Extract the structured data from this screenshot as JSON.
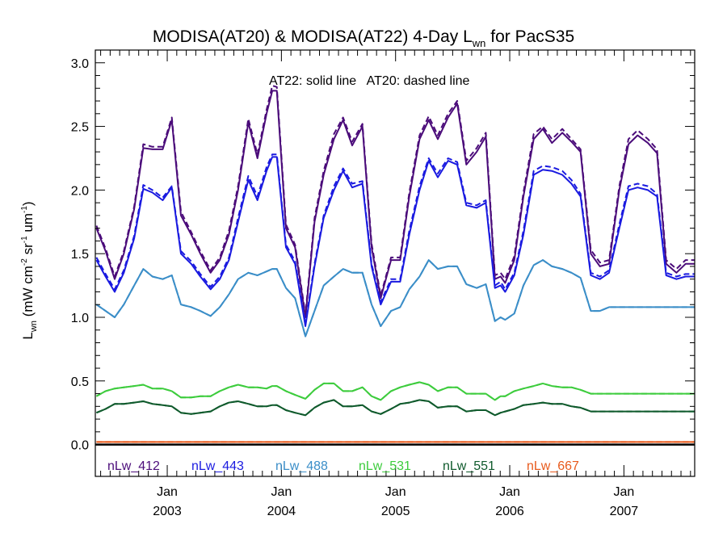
{
  "chart_data": {
    "type": "line",
    "title": {
      "prefix": "MODISA(AT20) & MODISA(AT22) 4-Day L",
      "subscript": "wn",
      "suffix": " for PacS35"
    },
    "ylabel": {
      "L": "L",
      "wn": "wn",
      "p1": " (mW cm",
      "e1": "-2",
      "p2": " sr",
      "e2": "-1",
      "p3": " um",
      "e3": "-1",
      "p4": ")"
    },
    "annotation": "AT22: solid line   AT20: dashed line",
    "ylim": [
      -0.25,
      3.1
    ],
    "xlim": [
      2002.37,
      2007.62
    ],
    "yticks": [
      "0.0",
      "0.5",
      "1.0",
      "1.5",
      "2.0",
      "2.5",
      "3.0"
    ],
    "xticks": [
      {
        "month": "Jan",
        "year": "2003"
      },
      {
        "month": "Jan",
        "year": "2004"
      },
      {
        "month": "Jan",
        "year": "2005"
      },
      {
        "month": "Jan",
        "year": "2006"
      },
      {
        "month": "Jan",
        "year": "2007"
      }
    ],
    "grid": false,
    "legend_position": "bottom",
    "x": [
      2002.38,
      2002.46,
      2002.54,
      2002.62,
      2002.71,
      2002.79,
      2002.87,
      2002.96,
      2003.04,
      2003.12,
      2003.21,
      2003.29,
      2003.38,
      2003.46,
      2003.54,
      2003.62,
      2003.71,
      2003.79,
      2003.87,
      2003.92,
      2003.96,
      2004.04,
      2004.12,
      2004.21,
      2004.29,
      2004.37,
      2004.46,
      2004.54,
      2004.62,
      2004.71,
      2004.79,
      2004.87,
      2004.96,
      2005.04,
      2005.12,
      2005.21,
      2005.29,
      2005.37,
      2005.46,
      2005.54,
      2005.62,
      2005.71,
      2005.79,
      2005.87,
      2005.92,
      2005.96,
      2006.04,
      2006.12,
      2006.21,
      2006.29,
      2006.37,
      2006.46,
      2006.54,
      2006.62,
      2006.71,
      2006.79,
      2006.87,
      2006.96,
      2007.04,
      2007.12,
      2007.21,
      2007.29,
      2007.37,
      2007.46,
      2007.54,
      2007.62
    ],
    "series": [
      {
        "name": "nLw_412",
        "color": "#4b0c7a",
        "solid": [
          1.7,
          1.52,
          1.3,
          1.5,
          1.85,
          2.33,
          2.32,
          2.32,
          2.55,
          1.8,
          1.65,
          1.5,
          1.35,
          1.45,
          1.65,
          2.0,
          2.53,
          2.25,
          2.6,
          2.78,
          2.78,
          1.7,
          1.55,
          1.0,
          1.75,
          2.12,
          2.4,
          2.55,
          2.35,
          2.5,
          1.55,
          1.15,
          1.45,
          1.45,
          1.95,
          2.4,
          2.55,
          2.4,
          2.57,
          2.68,
          2.2,
          2.3,
          2.42,
          1.3,
          1.32,
          1.27,
          1.45,
          1.95,
          2.4,
          2.48,
          2.37,
          2.45,
          2.38,
          2.3,
          1.5,
          1.4,
          1.42,
          2.0,
          2.36,
          2.43,
          2.37,
          2.29,
          1.42,
          1.35,
          1.42,
          1.42
        ],
        "dashed": [
          1.72,
          1.54,
          1.32,
          1.52,
          1.87,
          2.36,
          2.34,
          2.34,
          2.57,
          1.83,
          1.67,
          1.52,
          1.37,
          1.47,
          1.68,
          2.03,
          2.56,
          2.28,
          2.63,
          2.82,
          2.81,
          1.73,
          1.57,
          1.02,
          1.78,
          2.15,
          2.44,
          2.57,
          2.38,
          2.52,
          1.58,
          1.17,
          1.47,
          1.47,
          1.98,
          2.43,
          2.58,
          2.43,
          2.6,
          2.7,
          2.23,
          2.33,
          2.45,
          1.33,
          1.35,
          1.3,
          1.48,
          1.98,
          2.44,
          2.5,
          2.4,
          2.48,
          2.4,
          2.32,
          1.53,
          1.43,
          1.45,
          2.03,
          2.4,
          2.47,
          2.4,
          2.32,
          1.45,
          1.38,
          1.45,
          1.45
        ]
      },
      {
        "name": "nLw_443",
        "color": "#1a1ae0",
        "solid": [
          1.45,
          1.32,
          1.2,
          1.35,
          1.62,
          2.01,
          1.98,
          1.92,
          2.02,
          1.5,
          1.42,
          1.32,
          1.22,
          1.3,
          1.45,
          1.75,
          2.08,
          1.92,
          2.15,
          2.26,
          2.26,
          1.55,
          1.42,
          0.93,
          1.4,
          1.78,
          2.0,
          2.15,
          2.02,
          2.05,
          1.4,
          1.1,
          1.28,
          1.28,
          1.65,
          2.0,
          2.23,
          2.1,
          2.23,
          2.2,
          1.88,
          1.86,
          1.9,
          1.23,
          1.25,
          1.2,
          1.33,
          1.65,
          2.12,
          2.16,
          2.15,
          2.12,
          2.05,
          1.95,
          1.33,
          1.3,
          1.35,
          1.7,
          2.0,
          2.02,
          2.0,
          1.95,
          1.33,
          1.3,
          1.32,
          1.32
        ],
        "dashed": [
          1.47,
          1.34,
          1.22,
          1.37,
          1.64,
          2.04,
          2.0,
          1.94,
          2.03,
          1.52,
          1.44,
          1.34,
          1.24,
          1.32,
          1.47,
          1.78,
          2.11,
          1.95,
          2.18,
          2.28,
          2.28,
          1.57,
          1.44,
          0.95,
          1.42,
          1.8,
          2.03,
          2.17,
          2.05,
          2.07,
          1.42,
          1.12,
          1.3,
          1.3,
          1.68,
          2.03,
          2.25,
          2.13,
          2.25,
          2.22,
          1.9,
          1.88,
          1.92,
          1.25,
          1.28,
          1.22,
          1.35,
          1.68,
          2.15,
          2.19,
          2.18,
          2.15,
          2.08,
          1.97,
          1.35,
          1.32,
          1.37,
          1.73,
          2.03,
          2.05,
          2.03,
          1.97,
          1.35,
          1.32,
          1.34,
          1.34
        ]
      },
      {
        "name": "nLw_488",
        "color": "#3b8ec8",
        "solid": [
          1.1,
          1.05,
          1.0,
          1.1,
          1.25,
          1.38,
          1.32,
          1.3,
          1.33,
          1.1,
          1.08,
          1.05,
          1.01,
          1.08,
          1.18,
          1.3,
          1.35,
          1.33,
          1.36,
          1.38,
          1.38,
          1.23,
          1.15,
          0.85,
          1.05,
          1.25,
          1.32,
          1.38,
          1.35,
          1.35,
          1.1,
          0.93,
          1.05,
          1.08,
          1.22,
          1.32,
          1.45,
          1.38,
          1.4,
          1.4,
          1.26,
          1.23,
          1.26,
          0.97,
          1.0,
          0.98,
          1.03,
          1.25,
          1.41,
          1.45,
          1.4,
          1.38,
          1.35,
          1.31,
          1.05,
          1.05,
          1.08,
          1.08,
          1.08,
          1.08,
          1.08,
          1.08,
          1.08,
          1.08,
          1.08,
          1.08
        ],
        "dashed": [
          1.1,
          1.05,
          1.0,
          1.1,
          1.25,
          1.38,
          1.32,
          1.3,
          1.33,
          1.1,
          1.08,
          1.05,
          1.01,
          1.08,
          1.18,
          1.3,
          1.35,
          1.33,
          1.36,
          1.38,
          1.38,
          1.23,
          1.15,
          0.85,
          1.05,
          1.25,
          1.32,
          1.38,
          1.35,
          1.35,
          1.1,
          0.93,
          1.05,
          1.08,
          1.22,
          1.32,
          1.45,
          1.38,
          1.4,
          1.4,
          1.26,
          1.23,
          1.26,
          0.97,
          1.0,
          0.98,
          1.03,
          1.25,
          1.41,
          1.45,
          1.4,
          1.38,
          1.35,
          1.31,
          1.05,
          1.05,
          1.08,
          1.08,
          1.08,
          1.08,
          1.08,
          1.08,
          1.08,
          1.08,
          1.08,
          1.08
        ]
      },
      {
        "name": "nLw_531",
        "color": "#3dcc3d",
        "solid": [
          0.38,
          0.42,
          0.44,
          0.45,
          0.46,
          0.47,
          0.44,
          0.44,
          0.42,
          0.37,
          0.37,
          0.38,
          0.38,
          0.42,
          0.45,
          0.47,
          0.45,
          0.45,
          0.44,
          0.46,
          0.46,
          0.42,
          0.39,
          0.36,
          0.43,
          0.48,
          0.48,
          0.42,
          0.42,
          0.45,
          0.38,
          0.35,
          0.42,
          0.45,
          0.47,
          0.49,
          0.47,
          0.42,
          0.45,
          0.45,
          0.4,
          0.4,
          0.4,
          0.35,
          0.38,
          0.38,
          0.42,
          0.44,
          0.46,
          0.48,
          0.46,
          0.45,
          0.45,
          0.43,
          0.4,
          0.4,
          0.4,
          0.4,
          0.4,
          0.4,
          0.4,
          0.4,
          0.4,
          0.4,
          0.4,
          0.4
        ],
        "dashed": [
          0.38,
          0.42,
          0.44,
          0.45,
          0.46,
          0.47,
          0.44,
          0.44,
          0.42,
          0.37,
          0.37,
          0.38,
          0.38,
          0.42,
          0.45,
          0.47,
          0.45,
          0.45,
          0.44,
          0.46,
          0.46,
          0.42,
          0.39,
          0.36,
          0.43,
          0.48,
          0.48,
          0.42,
          0.42,
          0.45,
          0.38,
          0.35,
          0.42,
          0.45,
          0.47,
          0.49,
          0.47,
          0.42,
          0.45,
          0.45,
          0.4,
          0.4,
          0.4,
          0.35,
          0.38,
          0.38,
          0.42,
          0.44,
          0.46,
          0.48,
          0.46,
          0.45,
          0.45,
          0.43,
          0.4,
          0.4,
          0.4,
          0.4,
          0.4,
          0.4,
          0.4,
          0.4,
          0.4,
          0.4,
          0.4,
          0.4
        ]
      },
      {
        "name": "nLw_551",
        "color": "#0f5a2c",
        "solid": [
          0.25,
          0.28,
          0.32,
          0.32,
          0.33,
          0.34,
          0.32,
          0.31,
          0.3,
          0.25,
          0.24,
          0.25,
          0.26,
          0.3,
          0.33,
          0.34,
          0.32,
          0.3,
          0.3,
          0.31,
          0.31,
          0.27,
          0.25,
          0.23,
          0.29,
          0.33,
          0.35,
          0.3,
          0.3,
          0.31,
          0.26,
          0.24,
          0.28,
          0.32,
          0.33,
          0.35,
          0.34,
          0.29,
          0.3,
          0.3,
          0.26,
          0.27,
          0.27,
          0.23,
          0.25,
          0.26,
          0.28,
          0.31,
          0.32,
          0.33,
          0.32,
          0.32,
          0.3,
          0.29,
          0.26,
          0.26,
          0.26,
          0.26,
          0.26,
          0.26,
          0.26,
          0.26,
          0.26,
          0.26,
          0.26,
          0.26
        ],
        "dashed": [
          0.25,
          0.28,
          0.32,
          0.32,
          0.33,
          0.34,
          0.32,
          0.31,
          0.3,
          0.25,
          0.24,
          0.25,
          0.26,
          0.3,
          0.33,
          0.34,
          0.32,
          0.3,
          0.3,
          0.31,
          0.31,
          0.27,
          0.25,
          0.23,
          0.29,
          0.33,
          0.35,
          0.3,
          0.3,
          0.31,
          0.26,
          0.24,
          0.28,
          0.32,
          0.33,
          0.35,
          0.34,
          0.29,
          0.3,
          0.3,
          0.26,
          0.27,
          0.27,
          0.23,
          0.25,
          0.26,
          0.28,
          0.31,
          0.32,
          0.33,
          0.32,
          0.32,
          0.3,
          0.29,
          0.26,
          0.26,
          0.26,
          0.26,
          0.26,
          0.26,
          0.26,
          0.26,
          0.26,
          0.26,
          0.26,
          0.26
        ]
      },
      {
        "name": "nLw_667",
        "color": "#e85a1c",
        "solid": [
          0.02,
          0.02,
          0.02,
          0.02,
          0.02,
          0.02,
          0.02,
          0.02,
          0.02,
          0.02,
          0.02,
          0.02,
          0.02,
          0.02,
          0.02,
          0.02,
          0.02,
          0.02,
          0.02,
          0.02,
          0.02,
          0.02,
          0.02,
          0.02,
          0.02,
          0.02,
          0.02,
          0.02,
          0.02,
          0.02,
          0.02,
          0.02,
          0.02,
          0.02,
          0.02,
          0.02,
          0.02,
          0.02,
          0.02,
          0.02,
          0.02,
          0.02,
          0.02,
          0.02,
          0.02,
          0.02,
          0.02,
          0.02,
          0.02,
          0.02,
          0.02,
          0.02,
          0.02,
          0.02,
          0.02,
          0.02,
          0.02,
          0.02,
          0.02,
          0.02,
          0.02,
          0.02,
          0.02,
          0.02,
          0.02,
          0.02
        ],
        "dashed": [
          0.02,
          0.02,
          0.02,
          0.02,
          0.02,
          0.02,
          0.02,
          0.02,
          0.02,
          0.02,
          0.02,
          0.02,
          0.02,
          0.02,
          0.02,
          0.02,
          0.02,
          0.02,
          0.02,
          0.02,
          0.02,
          0.02,
          0.02,
          0.02,
          0.02,
          0.02,
          0.02,
          0.02,
          0.02,
          0.02,
          0.02,
          0.02,
          0.02,
          0.02,
          0.02,
          0.02,
          0.02,
          0.02,
          0.02,
          0.02,
          0.02,
          0.02,
          0.02,
          0.02,
          0.02,
          0.02,
          0.02,
          0.02,
          0.02,
          0.02,
          0.02,
          0.02,
          0.02,
          0.02,
          0.02,
          0.02,
          0.02,
          0.02,
          0.02,
          0.02,
          0.02,
          0.02,
          0.02,
          0.02,
          0.02,
          0.02
        ]
      }
    ]
  }
}
